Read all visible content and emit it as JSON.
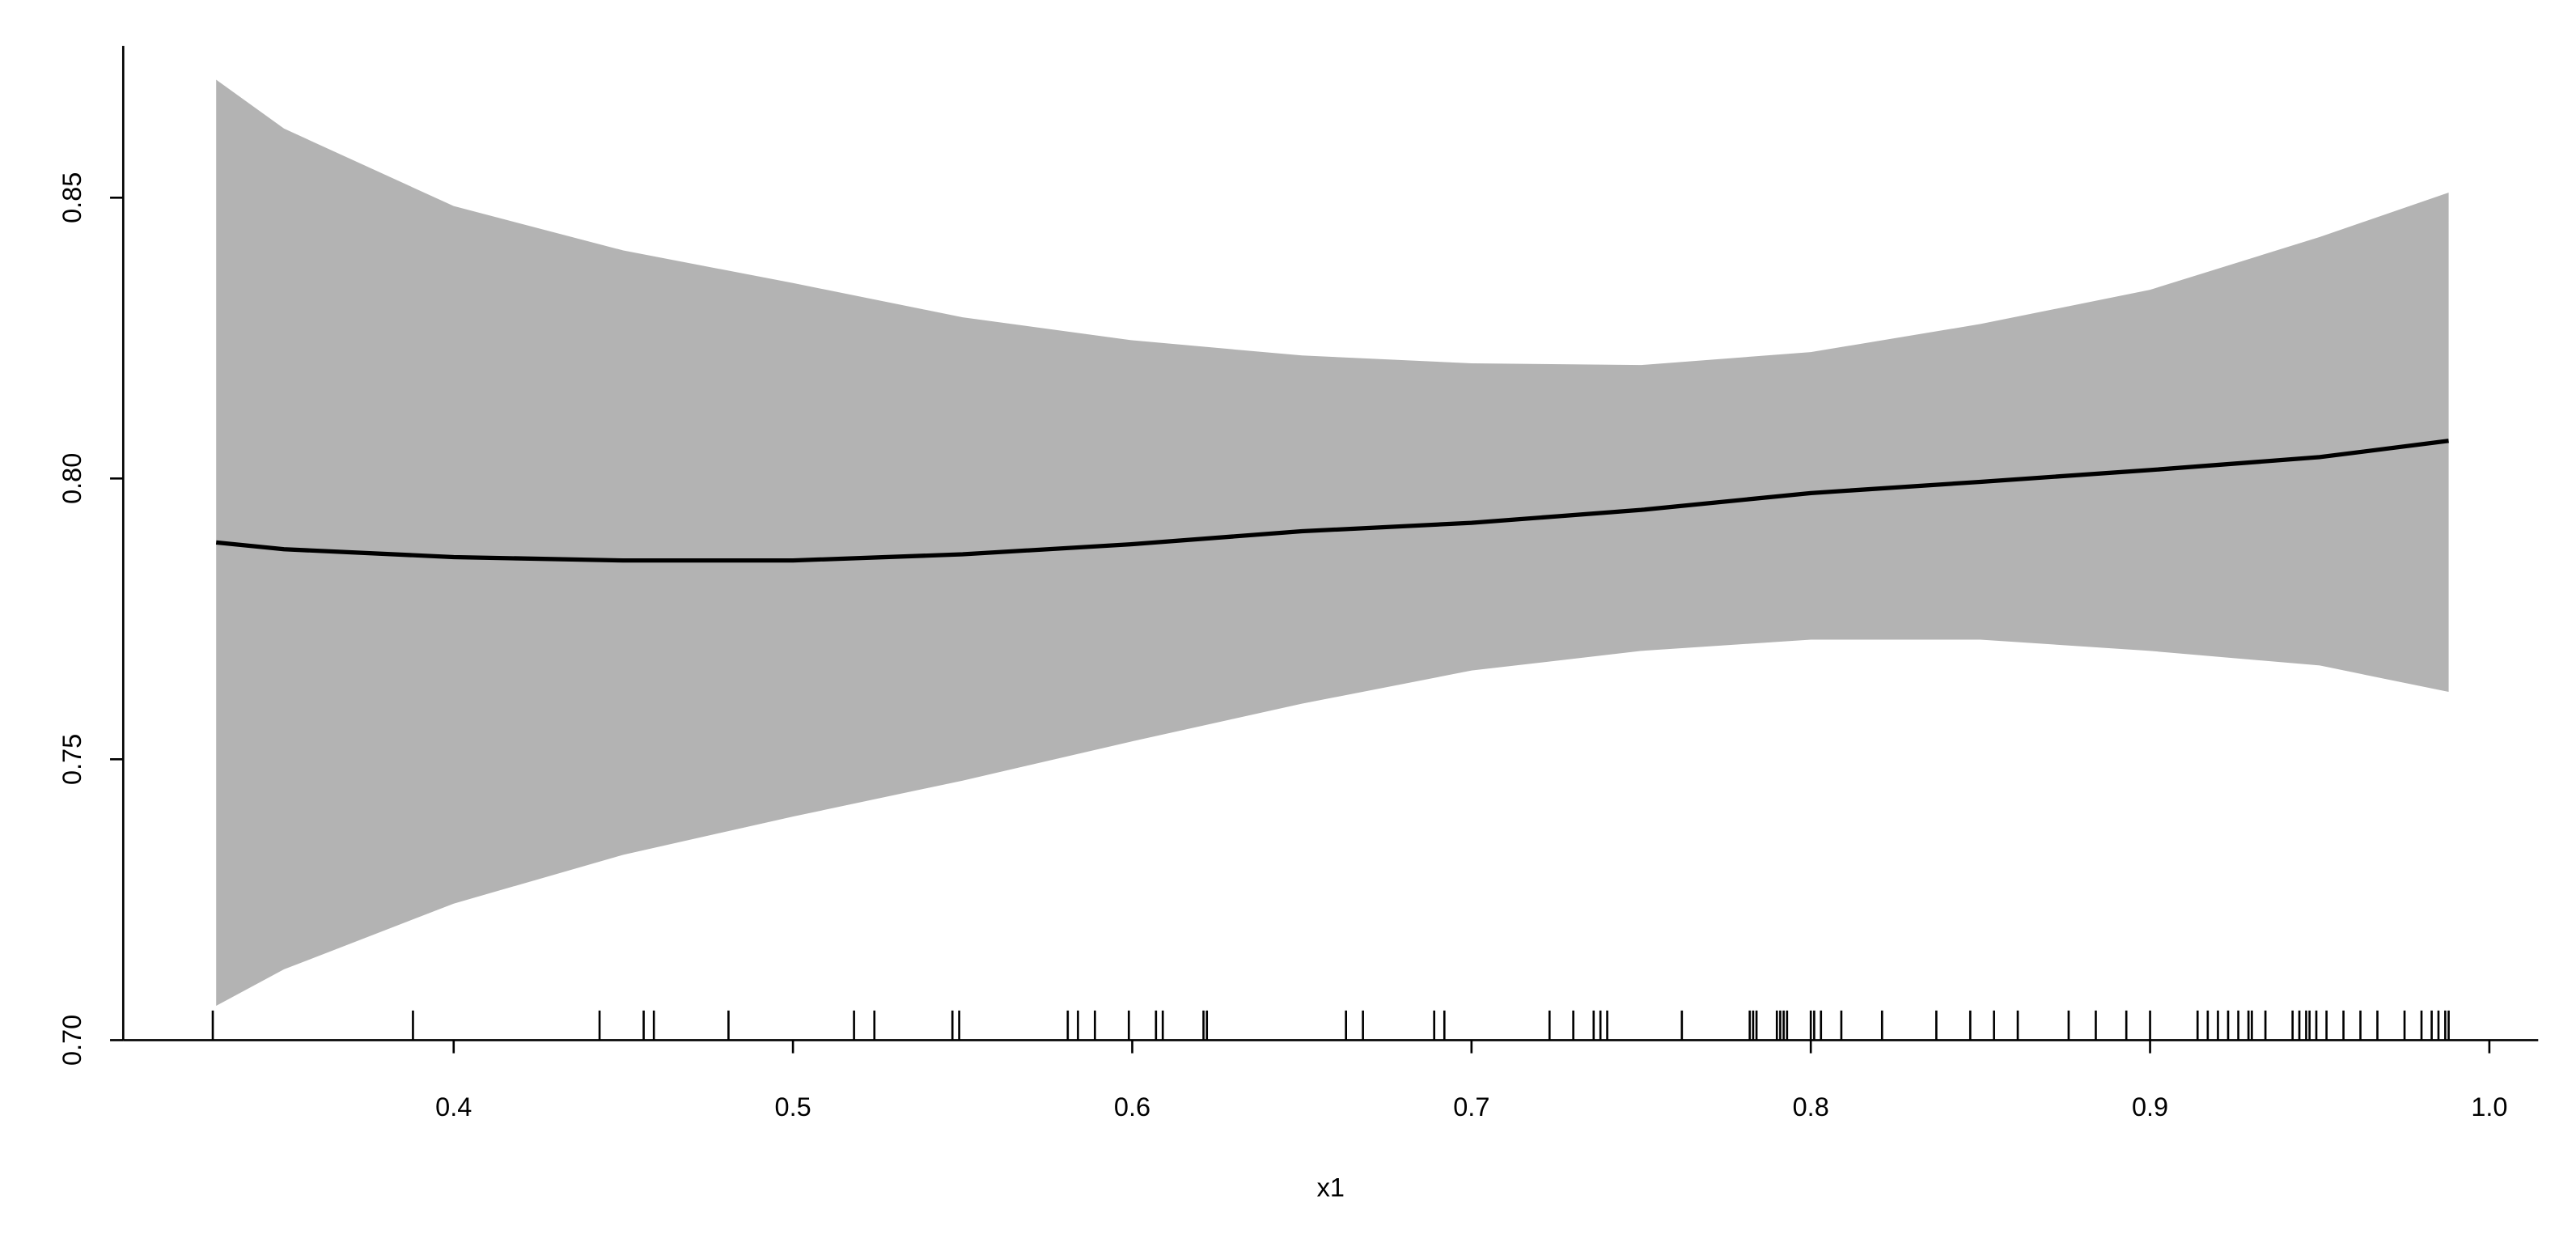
{
  "chart_data": {
    "type": "band-line",
    "xlabel": "x1",
    "x": [
      0.33,
      0.35,
      0.4,
      0.45,
      0.5,
      0.55,
      0.6,
      0.65,
      0.7,
      0.75,
      0.8,
      0.85,
      0.9,
      0.95,
      0.988
    ],
    "fit": [
      0.7886,
      0.7874,
      0.786,
      0.7854,
      0.7854,
      0.7865,
      0.7883,
      0.7906,
      0.7921,
      0.7944,
      0.7974,
      0.7994,
      0.8015,
      0.8038,
      0.8067
    ],
    "lower": [
      0.7061,
      0.7126,
      0.7243,
      0.733,
      0.7398,
      0.7462,
      0.7532,
      0.7599,
      0.7658,
      0.7693,
      0.7713,
      0.7713,
      0.7693,
      0.7667,
      0.762
    ],
    "upper": [
      0.871,
      0.8623,
      0.8485,
      0.8406,
      0.8348,
      0.8287,
      0.8246,
      0.8219,
      0.8205,
      0.8202,
      0.8225,
      0.8275,
      0.8336,
      0.843,
      0.8509
    ],
    "rug": [
      0.329,
      0.388,
      0.443,
      0.456,
      0.459,
      0.481,
      0.518,
      0.524,
      0.547,
      0.549,
      0.581,
      0.584,
      0.589,
      0.599,
      0.607,
      0.609,
      0.621,
      0.622,
      0.663,
      0.668,
      0.689,
      0.692,
      0.723,
      0.73,
      0.736,
      0.738,
      0.74,
      0.762,
      0.782,
      0.783,
      0.784,
      0.79,
      0.791,
      0.792,
      0.793,
      0.8,
      0.801,
      0.803,
      0.809,
      0.821,
      0.837,
      0.847,
      0.854,
      0.861,
      0.876,
      0.884,
      0.893,
      0.9,
      0.914,
      0.917,
      0.92,
      0.923,
      0.926,
      0.929,
      0.93,
      0.934,
      0.942,
      0.944,
      0.946,
      0.947,
      0.949,
      0.952,
      0.957,
      0.962,
      0.967,
      0.975,
      0.98,
      0.983,
      0.985,
      0.987,
      0.988
    ],
    "band_color": "#b3b3b3",
    "line_color": "#000000",
    "xlim": [
      0.3026,
      1.0144
    ],
    "ylim": [
      0.7,
      0.877
    ],
    "xticks": [
      0.4,
      0.5,
      0.6,
      0.7,
      0.8,
      0.9,
      {
        "value": 1.0,
        "label": "1.0"
      }
    ],
    "yticks": [
      {
        "value": 0.7,
        "label": "0.70"
      },
      0.75,
      {
        "value": 0.8,
        "label": "0.80"
      },
      0.85
    ]
  }
}
